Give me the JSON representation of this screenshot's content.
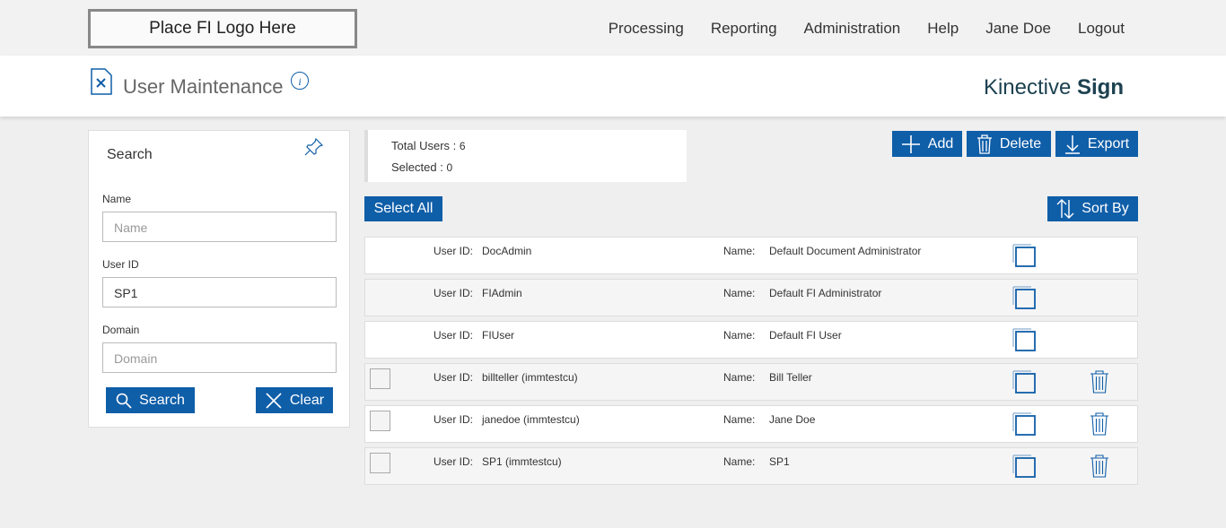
{
  "header": {
    "logo": "Place FI Logo Here",
    "nav": [
      "Processing",
      "Reporting",
      "Administration",
      "Help",
      "Jane Doe",
      "Logout"
    ]
  },
  "title_bar": {
    "title": "User Maintenance",
    "brand_light": "Kinective",
    "brand_bold": "Sign"
  },
  "search": {
    "title": "Search",
    "fields": [
      {
        "label": "Name",
        "placeholder": "Name"
      },
      {
        "label": "User ID",
        "value": "SP1"
      },
      {
        "label": "Domain",
        "placeholder": "Domain"
      }
    ],
    "buttons": [
      "Search",
      "Clear"
    ]
  },
  "summary": {
    "total_label": "Total Users :",
    "total": 6,
    "selected_label": "Selected :",
    "selected": 0
  },
  "actions": [
    "Add",
    "Delete",
    "Export"
  ],
  "select_all": "Select All",
  "sort_by": "Sort By",
  "users": {
    "id_label": "User ID:",
    "name_label": "Name:",
    "rows": [
      {
        "id": "DocAdmin",
        "name": "Default Document Administrator",
        "selectable": false
      },
      {
        "id": "FIAdmin",
        "name": "Default FI Administrator",
        "selectable": false
      },
      {
        "id": "FIUser",
        "name": "Default FI User",
        "selectable": false
      },
      {
        "id": "billteller (immtestcu)",
        "name": "Bill Teller",
        "selectable": true
      },
      {
        "id": "janedoe (immtestcu)",
        "name": "Jane Doe",
        "selectable": true
      },
      {
        "id": "SP1 (immtestcu)",
        "name": "SP1",
        "selectable": true
      }
    ]
  }
}
